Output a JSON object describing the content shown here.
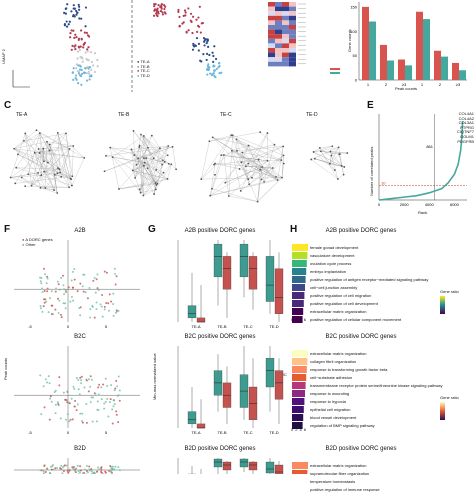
{
  "panel_labels": {
    "C": "C",
    "E": "E",
    "F": "F",
    "G": "G",
    "H": "H"
  },
  "panel_a": {
    "legend": [
      "TE-A",
      "TE-B",
      "TE-C",
      "TE-D"
    ],
    "colors": [
      "#2d4a8a",
      "#c9c9c9",
      "#b33b4e",
      "#6cb6de"
    ],
    "ylabel": "UMAP 2"
  },
  "panel_d": {
    "yaxis": "Gene counts",
    "xaxis": "Peak counts",
    "xticks": [
      "1",
      "2",
      "≥3",
      "1",
      "2",
      "≥3"
    ],
    "yticks": [
      "0",
      "50",
      "100",
      "150"
    ],
    "series_colors": [
      "#d9534f",
      "#45a89e"
    ]
  },
  "panel_c": {
    "titles": [
      "TE-A",
      "TE-B",
      "TE-C",
      "TE-D"
    ]
  },
  "panel_e": {
    "ylabel": "Number of correlated peaks",
    "xlabel": "Rank",
    "xticks": [
      "0",
      "2000",
      "4000",
      "6000"
    ],
    "hline_label": "10",
    "vline_label": "861",
    "genes": [
      "COL4A1",
      "COL4A2",
      "COL3A1",
      "PTPRG",
      "CIQTNF7",
      "GOLM1",
      "PDGFRB",
      "MEST",
      "PRRX1",
      "GLI2",
      "IRAK3",
      "ADGRL4"
    ]
  },
  "panel_f": {
    "titles": [
      "A2B",
      "B2C",
      "B2D"
    ],
    "legend": [
      "A DORC genes",
      "Other"
    ],
    "ylabel": "Peak counts",
    "xticks": [
      "-5",
      "0",
      "5"
    ]
  },
  "panel_g": {
    "titles": [
      "A2B positive DORC genes",
      "B2C positive DORC genes",
      "B2D positive DORC genes"
    ],
    "ylabel": "Min-max normalized value",
    "xticks": [
      "TE-A",
      "TE-B",
      "TE-C",
      "TE-D"
    ],
    "legend": [
      "DORC",
      "Exp"
    ],
    "colors": [
      "#3e9b8f",
      "#c5524e"
    ]
  },
  "panel_h": {
    "titles": [
      "A2B positive DORC genes",
      "B2C positive DORC genes",
      "B2D positive DORC genes"
    ],
    "terms1": [
      "female gonad development",
      "vasculature development",
      "ovulation cycle process",
      "embryo implantation",
      "positive regulation of antigen receptor−mediated signaling pathway",
      "cell−cell junction assembly",
      "positive regulation of cell migration",
      "positive regulation of cell development",
      "extracellular matrix organization",
      "positive regulation of cellular component movement"
    ],
    "terms2": [
      "extracellular matrix organization",
      "collagen fibril organization",
      "response to transforming growth factor beta",
      "cell−substrate adhesion",
      "transmembrane receptor protein serine/threonine kinase signaling pathway",
      "response to wounding",
      "response to hypoxia",
      "epithelial cell migration",
      "blood vessel development",
      "regulation of BMP signaling pathway"
    ],
    "terms3": [
      "extracellular matrix organization",
      "supramolecular fiber organization",
      "temperature homeostasis",
      "positive regulation of immune response"
    ],
    "xticks": [
      "0",
      "2",
      "4",
      "6"
    ],
    "legend_title": "Gene ratio"
  },
  "chart_data": [
    {
      "type": "bar",
      "title": "",
      "xlabel": "Peak counts",
      "ylabel": "Gene counts",
      "categories": [
        "1",
        "2",
        "≥3",
        "1",
        "2",
        "≥3"
      ],
      "series": [
        {
          "values": [
            150,
            72,
            42,
            140,
            60,
            35
          ]
        },
        {
          "values": [
            120,
            40,
            30,
            125,
            48,
            20
          ]
        }
      ],
      "ylim": [
        0,
        160
      ]
    },
    {
      "type": "scatter",
      "title": "",
      "xlabel": "Rank",
      "ylabel": "Number of correlated peaks",
      "xlim": [
        0,
        7000
      ],
      "ylim": [
        0,
        60
      ],
      "points": [
        [
          0,
          0
        ],
        [
          1000,
          1
        ],
        [
          2000,
          2
        ],
        [
          3000,
          3
        ],
        [
          4000,
          5
        ],
        [
          5000,
          8
        ],
        [
          5500,
          12
        ],
        [
          6000,
          18
        ],
        [
          6300,
          25
        ],
        [
          6500,
          35
        ],
        [
          6600,
          45
        ],
        [
          6650,
          55
        ]
      ]
    }
  ]
}
